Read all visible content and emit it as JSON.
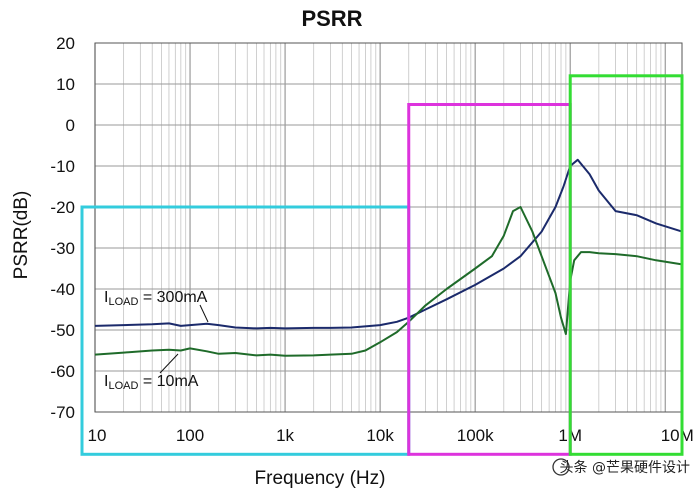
{
  "chart_data": {
    "type": "line",
    "title": "PSRR",
    "xlabel": "Frequency (Hz)",
    "ylabel": "PSRR(dB)",
    "x_scale": "log",
    "xlim": [
      10,
      15000000
    ],
    "ylim": [
      -70,
      20
    ],
    "xticks": [
      {
        "value": 10,
        "label": "10"
      },
      {
        "value": 100,
        "label": "100"
      },
      {
        "value": 1000,
        "label": "1k"
      },
      {
        "value": 10000,
        "label": "10k"
      },
      {
        "value": 100000,
        "label": "100k"
      },
      {
        "value": 1000000,
        "label": "1M"
      },
      {
        "value": 10000000,
        "label": "10M"
      }
    ],
    "yticks": [
      20,
      10,
      0,
      -10,
      -20,
      -30,
      -40,
      -50,
      -60,
      -70
    ],
    "grid": true,
    "series": [
      {
        "name": "I_LOAD = 300mA",
        "label_main": "I",
        "label_sub": "LOAD",
        "label_rest": " = 300mA",
        "color": "#1b2a6b",
        "x": [
          10,
          20,
          40,
          60,
          80,
          100,
          150,
          200,
          300,
          500,
          700,
          1000,
          2000,
          3000,
          5000,
          10000,
          15000,
          20000,
          30000,
          50000,
          100000,
          200000,
          300000,
          500000,
          700000,
          850000,
          1000000,
          1200000,
          1600000,
          2000000,
          3000000,
          5000000,
          8000000,
          15000000
        ],
        "y": [
          -49,
          -48.8,
          -48.6,
          -48.4,
          -49,
          -48.8,
          -48.5,
          -48.8,
          -49.4,
          -49.6,
          -49.5,
          -49.6,
          -49.5,
          -49.5,
          -49.4,
          -48.8,
          -48,
          -47,
          -45,
          -42.5,
          -39,
          -35,
          -32,
          -26,
          -20,
          -15,
          -10,
          -8.5,
          -12,
          -16,
          -21,
          -22,
          -24,
          -26
        ]
      },
      {
        "name": "I_LOAD = 10mA",
        "label_main": "I",
        "label_sub": "LOAD",
        "label_rest": " = 10mA",
        "color": "#1f6b2a",
        "x": [
          10,
          20,
          40,
          60,
          80,
          100,
          150,
          200,
          300,
          500,
          700,
          1000,
          2000,
          3000,
          5000,
          7000,
          10000,
          15000,
          20000,
          30000,
          50000,
          100000,
          150000,
          200000,
          250000,
          300000,
          400000,
          500000,
          700000,
          800000,
          900000,
          1000000,
          1100000,
          1300000,
          1600000,
          2000000,
          3000000,
          5000000,
          8000000,
          15000000
        ],
        "y": [
          -56,
          -55.5,
          -55,
          -54.8,
          -55,
          -54.5,
          -55.2,
          -55.8,
          -55.6,
          -56.2,
          -56,
          -56.3,
          -56.2,
          -56,
          -55.8,
          -55,
          -53,
          -50.5,
          -48,
          -44,
          -40,
          -35,
          -32,
          -27,
          -21,
          -20,
          -26,
          -32,
          -41,
          -47,
          -51,
          -38,
          -33,
          -31,
          -31,
          -31.3,
          -31.5,
          -32,
          -33,
          -34
        ]
      }
    ],
    "annotations": [
      {
        "text": "I_LOAD = 300mA",
        "x": 10,
        "y": -38
      },
      {
        "text": "I_LOAD = 10mA",
        "x": 10,
        "y": -62
      }
    ],
    "highlight_boxes": [
      {
        "color": "#33ccdd",
        "x_range": [
          10,
          20000
        ],
        "y_range": [
          -73,
          -20
        ]
      },
      {
        "color": "#dd33dd",
        "x_range": [
          20000,
          1000000
        ],
        "y_range": [
          -73,
          5
        ]
      },
      {
        "color": "#33dd33",
        "x_range": [
          1000000,
          15000000
        ],
        "y_range": [
          -73,
          12
        ]
      }
    ]
  },
  "watermark": {
    "text": "头条 @芒果硬件设计"
  }
}
